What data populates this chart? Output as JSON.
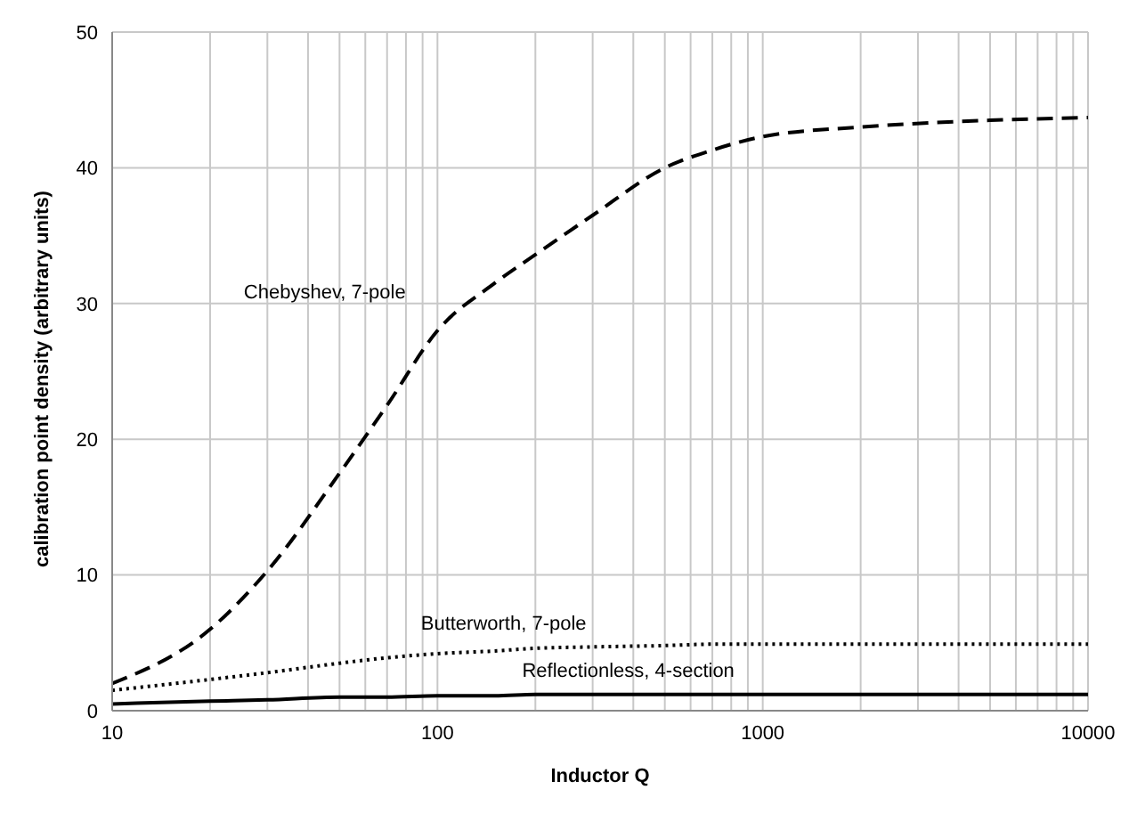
{
  "chart_data": {
    "type": "line",
    "xlabel": "Inductor Q",
    "ylabel": "calibration point density (arbitrary units)",
    "x": [
      10,
      20,
      30,
      50,
      70,
      100,
      150,
      200,
      300,
      500,
      700,
      1000,
      2000,
      5000,
      10000
    ],
    "series": [
      {
        "name": "Chebyshev, 7-pole",
        "color": "#000000",
        "line_style": "dashed",
        "values": [
          2,
          6,
          10.3,
          17.5,
          22.5,
          28,
          31.5,
          33.6,
          36.5,
          40,
          41.3,
          42.3,
          43,
          43.5,
          43.7
        ]
      },
      {
        "name": "Butterworth, 7-pole",
        "color": "#000000",
        "line_style": "dotted",
        "values": [
          1.5,
          2.3,
          2.8,
          3.5,
          3.9,
          4.2,
          4.4,
          4.6,
          4.7,
          4.8,
          4.9,
          4.9,
          4.9,
          4.9,
          4.9
        ]
      },
      {
        "name": "Reflectionless, 4-section",
        "color": "#000000",
        "line_style": "solid",
        "values": [
          0.5,
          0.7,
          0.8,
          1.0,
          1.0,
          1.1,
          1.1,
          1.2,
          1.2,
          1.2,
          1.2,
          1.2,
          1.2,
          1.2,
          1.2
        ]
      }
    ],
    "log": "x",
    "xlim": [
      10,
      10000
    ],
    "xticks": [
      10,
      {
        "value": 20,
        "label": null
      },
      {
        "value": 30,
        "label": null
      },
      {
        "value": 40,
        "label": null
      },
      {
        "value": 50,
        "label": null
      },
      {
        "value": 60,
        "label": null
      },
      {
        "value": 70,
        "label": null
      },
      {
        "value": 80,
        "label": null
      },
      {
        "value": 90,
        "label": null
      },
      100,
      {
        "value": 200,
        "label": null
      },
      {
        "value": 300,
        "label": null
      },
      {
        "value": 400,
        "label": null
      },
      {
        "value": 500,
        "label": null
      },
      {
        "value": 600,
        "label": null
      },
      {
        "value": 700,
        "label": null
      },
      {
        "value": 800,
        "label": null
      },
      {
        "value": 900,
        "label": null
      },
      1000,
      {
        "value": 2000,
        "label": null
      },
      {
        "value": 3000,
        "label": null
      },
      {
        "value": 4000,
        "label": null
      },
      {
        "value": 5000,
        "label": null
      },
      {
        "value": 6000,
        "label": null
      },
      {
        "value": 7000,
        "label": null
      },
      {
        "value": 8000,
        "label": null
      },
      {
        "value": 9000,
        "label": null
      },
      10000
    ],
    "ylim": [
      0,
      50
    ],
    "yticks": [
      0,
      10,
      20,
      30,
      40,
      50
    ],
    "grid": true,
    "marker": "none"
  }
}
